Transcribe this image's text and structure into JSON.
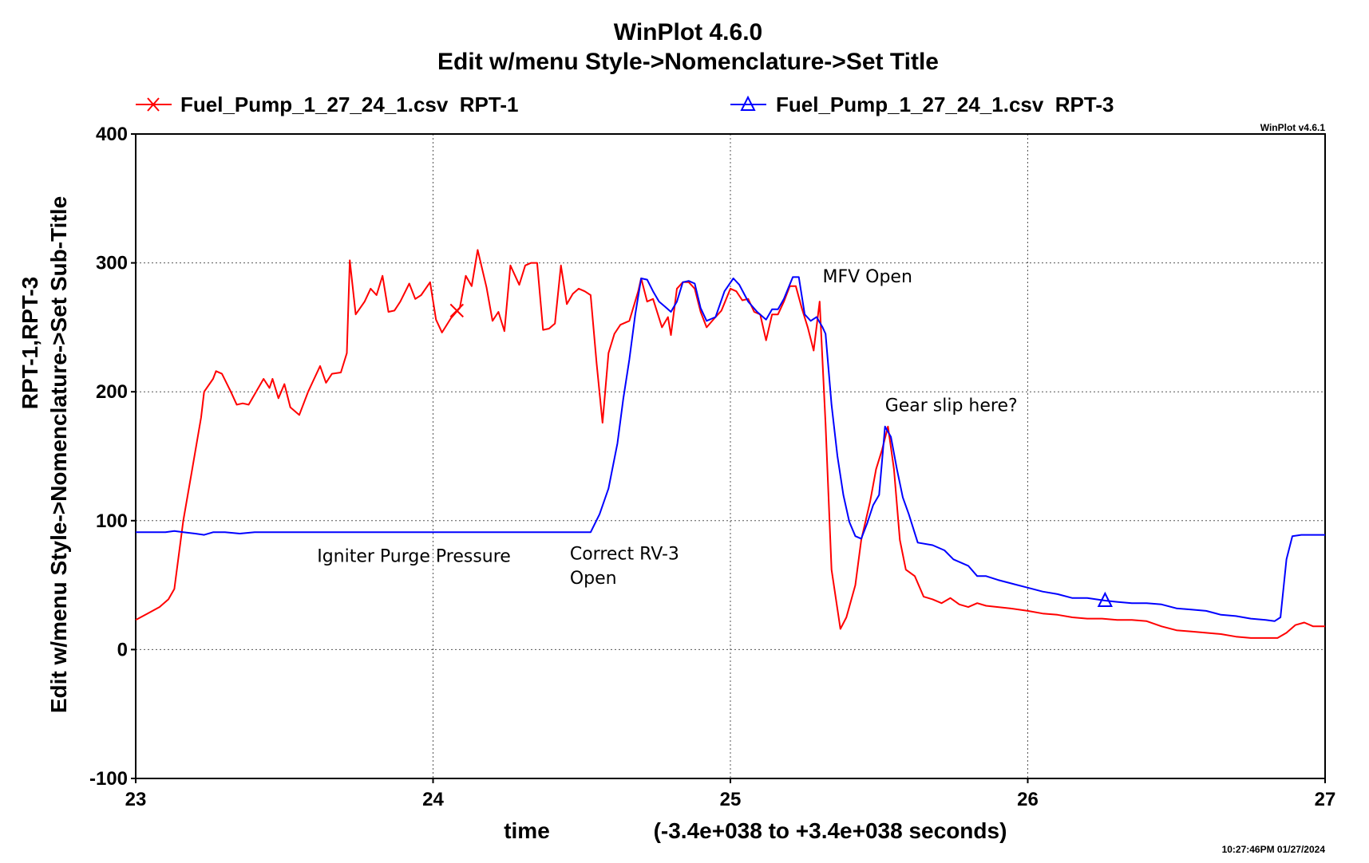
{
  "chart_data": {
    "type": "line",
    "title": "WinPlot 4.6.0",
    "subtitle": "Edit w/menu Style->Nomenclature->Set Title",
    "ylabel_line1": "RPT-1,RPT-3",
    "ylabel_line2": "Edit w/menu Style->Nomenclature->Set Sub-Title",
    "xlabel": "time",
    "xlabel_range": "(-3.4e+038 to +3.4e+038 seconds)",
    "version_tag": "WinPlot v4.6.1",
    "timestamp": "10:27:46PM 01/27/2024",
    "xlim": [
      23,
      27
    ],
    "ylim": [
      -100,
      400
    ],
    "xticks": [
      23,
      24,
      25,
      26,
      27
    ],
    "yticks": [
      -100,
      0,
      100,
      200,
      300,
      400
    ],
    "xtick_labels": [
      "23",
      "24",
      "25",
      "26",
      "27"
    ],
    "ytick_labels": [
      "-100",
      "0",
      "100",
      "200",
      "300",
      "400"
    ],
    "grid": true,
    "legend_position": "top",
    "series": [
      {
        "name": "Fuel_Pump_1_27_24_1.csv  RPT-1",
        "color": "#ff0000",
        "marker": "x",
        "marker_at": [
          24.08,
          263
        ],
        "points": [
          [
            23.0,
            23
          ],
          [
            23.04,
            28
          ],
          [
            23.08,
            33
          ],
          [
            23.11,
            39
          ],
          [
            23.13,
            47
          ],
          [
            23.16,
            100
          ],
          [
            23.19,
            140
          ],
          [
            23.22,
            180
          ],
          [
            23.23,
            200
          ],
          [
            23.26,
            210
          ],
          [
            23.27,
            216
          ],
          [
            23.29,
            214
          ],
          [
            23.32,
            200
          ],
          [
            23.34,
            190
          ],
          [
            23.36,
            191
          ],
          [
            23.38,
            190
          ],
          [
            23.4,
            198
          ],
          [
            23.43,
            210
          ],
          [
            23.45,
            203
          ],
          [
            23.46,
            210
          ],
          [
            23.48,
            195
          ],
          [
            23.5,
            206
          ],
          [
            23.52,
            188
          ],
          [
            23.55,
            182
          ],
          [
            23.58,
            200
          ],
          [
            23.6,
            210
          ],
          [
            23.62,
            220
          ],
          [
            23.64,
            207
          ],
          [
            23.66,
            214
          ],
          [
            23.69,
            215
          ],
          [
            23.71,
            230
          ],
          [
            23.72,
            302
          ],
          [
            23.74,
            260
          ],
          [
            23.77,
            270
          ],
          [
            23.79,
            280
          ],
          [
            23.81,
            275
          ],
          [
            23.83,
            290
          ],
          [
            23.85,
            262
          ],
          [
            23.87,
            263
          ],
          [
            23.89,
            270
          ],
          [
            23.92,
            284
          ],
          [
            23.94,
            272
          ],
          [
            23.96,
            275
          ],
          [
            23.99,
            285
          ],
          [
            24.01,
            256
          ],
          [
            24.03,
            246
          ],
          [
            24.06,
            257
          ],
          [
            24.09,
            265
          ],
          [
            24.11,
            290
          ],
          [
            24.13,
            282
          ],
          [
            24.15,
            310
          ],
          [
            24.18,
            281
          ],
          [
            24.2,
            255
          ],
          [
            24.22,
            262
          ],
          [
            24.24,
            247
          ],
          [
            24.26,
            298
          ],
          [
            24.29,
            283
          ],
          [
            24.31,
            298
          ],
          [
            24.33,
            300
          ],
          [
            24.35,
            300
          ],
          [
            24.37,
            248
          ],
          [
            24.39,
            249
          ],
          [
            24.41,
            253
          ],
          [
            24.43,
            298
          ],
          [
            24.45,
            268
          ],
          [
            24.47,
            276
          ],
          [
            24.49,
            280
          ],
          [
            24.51,
            278
          ],
          [
            24.53,
            275
          ],
          [
            24.55,
            222
          ],
          [
            24.57,
            176
          ],
          [
            24.59,
            230
          ],
          [
            24.61,
            245
          ],
          [
            24.63,
            252
          ],
          [
            24.66,
            255
          ],
          [
            24.69,
            278
          ],
          [
            24.7,
            288
          ],
          [
            24.72,
            270
          ],
          [
            24.74,
            272
          ],
          [
            24.77,
            250
          ],
          [
            24.79,
            258
          ],
          [
            24.8,
            244
          ],
          [
            24.82,
            280
          ],
          [
            24.84,
            285
          ],
          [
            24.86,
            285
          ],
          [
            24.88,
            280
          ],
          [
            24.9,
            262
          ],
          [
            24.92,
            250
          ],
          [
            24.95,
            258
          ],
          [
            24.97,
            263
          ],
          [
            25.0,
            280
          ],
          [
            25.02,
            278
          ],
          [
            25.04,
            271
          ],
          [
            25.06,
            272
          ],
          [
            25.08,
            262
          ],
          [
            25.1,
            260
          ],
          [
            25.12,
            240
          ],
          [
            25.14,
            260
          ],
          [
            25.16,
            260
          ],
          [
            25.18,
            270
          ],
          [
            25.2,
            282
          ],
          [
            25.22,
            282
          ],
          [
            25.24,
            265
          ],
          [
            25.26,
            250
          ],
          [
            25.28,
            232
          ],
          [
            25.3,
            270
          ],
          [
            25.32,
            175
          ],
          [
            25.34,
            62
          ],
          [
            25.37,
            16
          ],
          [
            25.39,
            25
          ],
          [
            25.42,
            50
          ],
          [
            25.44,
            85
          ],
          [
            25.47,
            115
          ],
          [
            25.49,
            140
          ],
          [
            25.51,
            155
          ],
          [
            25.53,
            173
          ],
          [
            25.55,
            140
          ],
          [
            25.57,
            85
          ],
          [
            25.59,
            62
          ],
          [
            25.62,
            57
          ],
          [
            25.65,
            41
          ],
          [
            25.68,
            39
          ],
          [
            25.71,
            36
          ],
          [
            25.74,
            40
          ],
          [
            25.77,
            35
          ],
          [
            25.8,
            33
          ],
          [
            25.83,
            36
          ],
          [
            25.86,
            34
          ],
          [
            25.9,
            33
          ],
          [
            25.94,
            32
          ],
          [
            26.0,
            30
          ],
          [
            26.05,
            28
          ],
          [
            26.1,
            27
          ],
          [
            26.15,
            25
          ],
          [
            26.2,
            24
          ],
          [
            26.25,
            24
          ],
          [
            26.3,
            23
          ],
          [
            26.35,
            23
          ],
          [
            26.4,
            22
          ],
          [
            26.45,
            18
          ],
          [
            26.5,
            15
          ],
          [
            26.55,
            14
          ],
          [
            26.6,
            13
          ],
          [
            26.65,
            12
          ],
          [
            26.7,
            10
          ],
          [
            26.75,
            9
          ],
          [
            26.8,
            9
          ],
          [
            26.84,
            9
          ],
          [
            26.87,
            13
          ],
          [
            26.9,
            19
          ],
          [
            26.93,
            21
          ],
          [
            26.96,
            18
          ],
          [
            27.0,
            18
          ]
        ]
      },
      {
        "name": "Fuel_Pump_1_27_24_1.csv  RPT-3",
        "color": "#0000ff",
        "marker": "triangle",
        "marker_at": [
          26.26,
          38
        ],
        "points": [
          [
            23.0,
            91
          ],
          [
            23.05,
            91
          ],
          [
            23.1,
            91
          ],
          [
            23.13,
            92
          ],
          [
            23.16,
            91
          ],
          [
            23.2,
            90
          ],
          [
            23.23,
            89
          ],
          [
            23.26,
            91
          ],
          [
            23.3,
            91
          ],
          [
            23.35,
            90
          ],
          [
            23.4,
            91
          ],
          [
            23.5,
            91
          ],
          [
            23.6,
            91
          ],
          [
            23.7,
            91
          ],
          [
            23.8,
            91
          ],
          [
            23.9,
            91
          ],
          [
            24.0,
            91
          ],
          [
            24.1,
            91
          ],
          [
            24.2,
            91
          ],
          [
            24.3,
            91
          ],
          [
            24.4,
            91
          ],
          [
            24.5,
            91
          ],
          [
            24.53,
            91
          ],
          [
            24.56,
            105
          ],
          [
            24.59,
            125
          ],
          [
            24.62,
            160
          ],
          [
            24.64,
            195
          ],
          [
            24.66,
            225
          ],
          [
            24.68,
            260
          ],
          [
            24.7,
            288
          ],
          [
            24.72,
            287
          ],
          [
            24.74,
            278
          ],
          [
            24.76,
            270
          ],
          [
            24.78,
            266
          ],
          [
            24.8,
            262
          ],
          [
            24.82,
            270
          ],
          [
            24.84,
            285
          ],
          [
            24.86,
            286
          ],
          [
            24.88,
            284
          ],
          [
            24.9,
            265
          ],
          [
            24.92,
            255
          ],
          [
            24.95,
            258
          ],
          [
            24.98,
            278
          ],
          [
            25.01,
            288
          ],
          [
            25.03,
            283
          ],
          [
            25.06,
            270
          ],
          [
            25.09,
            262
          ],
          [
            25.12,
            256
          ],
          [
            25.14,
            264
          ],
          [
            25.16,
            264
          ],
          [
            25.18,
            272
          ],
          [
            25.21,
            289
          ],
          [
            25.23,
            289
          ],
          [
            25.25,
            260
          ],
          [
            25.27,
            255
          ],
          [
            25.29,
            258
          ],
          [
            25.31,
            250
          ],
          [
            25.32,
            245
          ],
          [
            25.34,
            190
          ],
          [
            25.36,
            150
          ],
          [
            25.38,
            120
          ],
          [
            25.4,
            99
          ],
          [
            25.42,
            88
          ],
          [
            25.44,
            86
          ],
          [
            25.46,
            98
          ],
          [
            25.48,
            112
          ],
          [
            25.5,
            120
          ],
          [
            25.52,
            173
          ],
          [
            25.54,
            165
          ],
          [
            25.56,
            140
          ],
          [
            25.58,
            118
          ],
          [
            25.6,
            105
          ],
          [
            25.63,
            83
          ],
          [
            25.68,
            81
          ],
          [
            25.72,
            77
          ],
          [
            25.75,
            70
          ],
          [
            25.8,
            65
          ],
          [
            25.83,
            57
          ],
          [
            25.86,
            57
          ],
          [
            25.9,
            54
          ],
          [
            25.95,
            51
          ],
          [
            26.0,
            48
          ],
          [
            26.05,
            45
          ],
          [
            26.1,
            43
          ],
          [
            26.15,
            40
          ],
          [
            26.2,
            40
          ],
          [
            26.26,
            38
          ],
          [
            26.3,
            37
          ],
          [
            26.35,
            36
          ],
          [
            26.4,
            36
          ],
          [
            26.45,
            35
          ],
          [
            26.5,
            32
          ],
          [
            26.55,
            31
          ],
          [
            26.6,
            30
          ],
          [
            26.65,
            27
          ],
          [
            26.7,
            26
          ],
          [
            26.75,
            24
          ],
          [
            26.8,
            23
          ],
          [
            26.83,
            22
          ],
          [
            26.85,
            25
          ],
          [
            26.87,
            70
          ],
          [
            26.89,
            88
          ],
          [
            26.92,
            89
          ],
          [
            26.95,
            89
          ],
          [
            27.0,
            89
          ]
        ]
      }
    ],
    "annotations": [
      {
        "text": "MFV Open",
        "x": 25.31,
        "y": 285
      },
      {
        "text": "Gear slip here?",
        "x": 25.52,
        "y": 185
      },
      {
        "text": "Igniter Purge Pressure",
        "x": 23.61,
        "y": 68
      },
      {
        "text": "Correct RV-3",
        "x": 24.46,
        "y": 70
      },
      {
        "text": "Open",
        "x": 24.46,
        "y": 51
      }
    ]
  }
}
